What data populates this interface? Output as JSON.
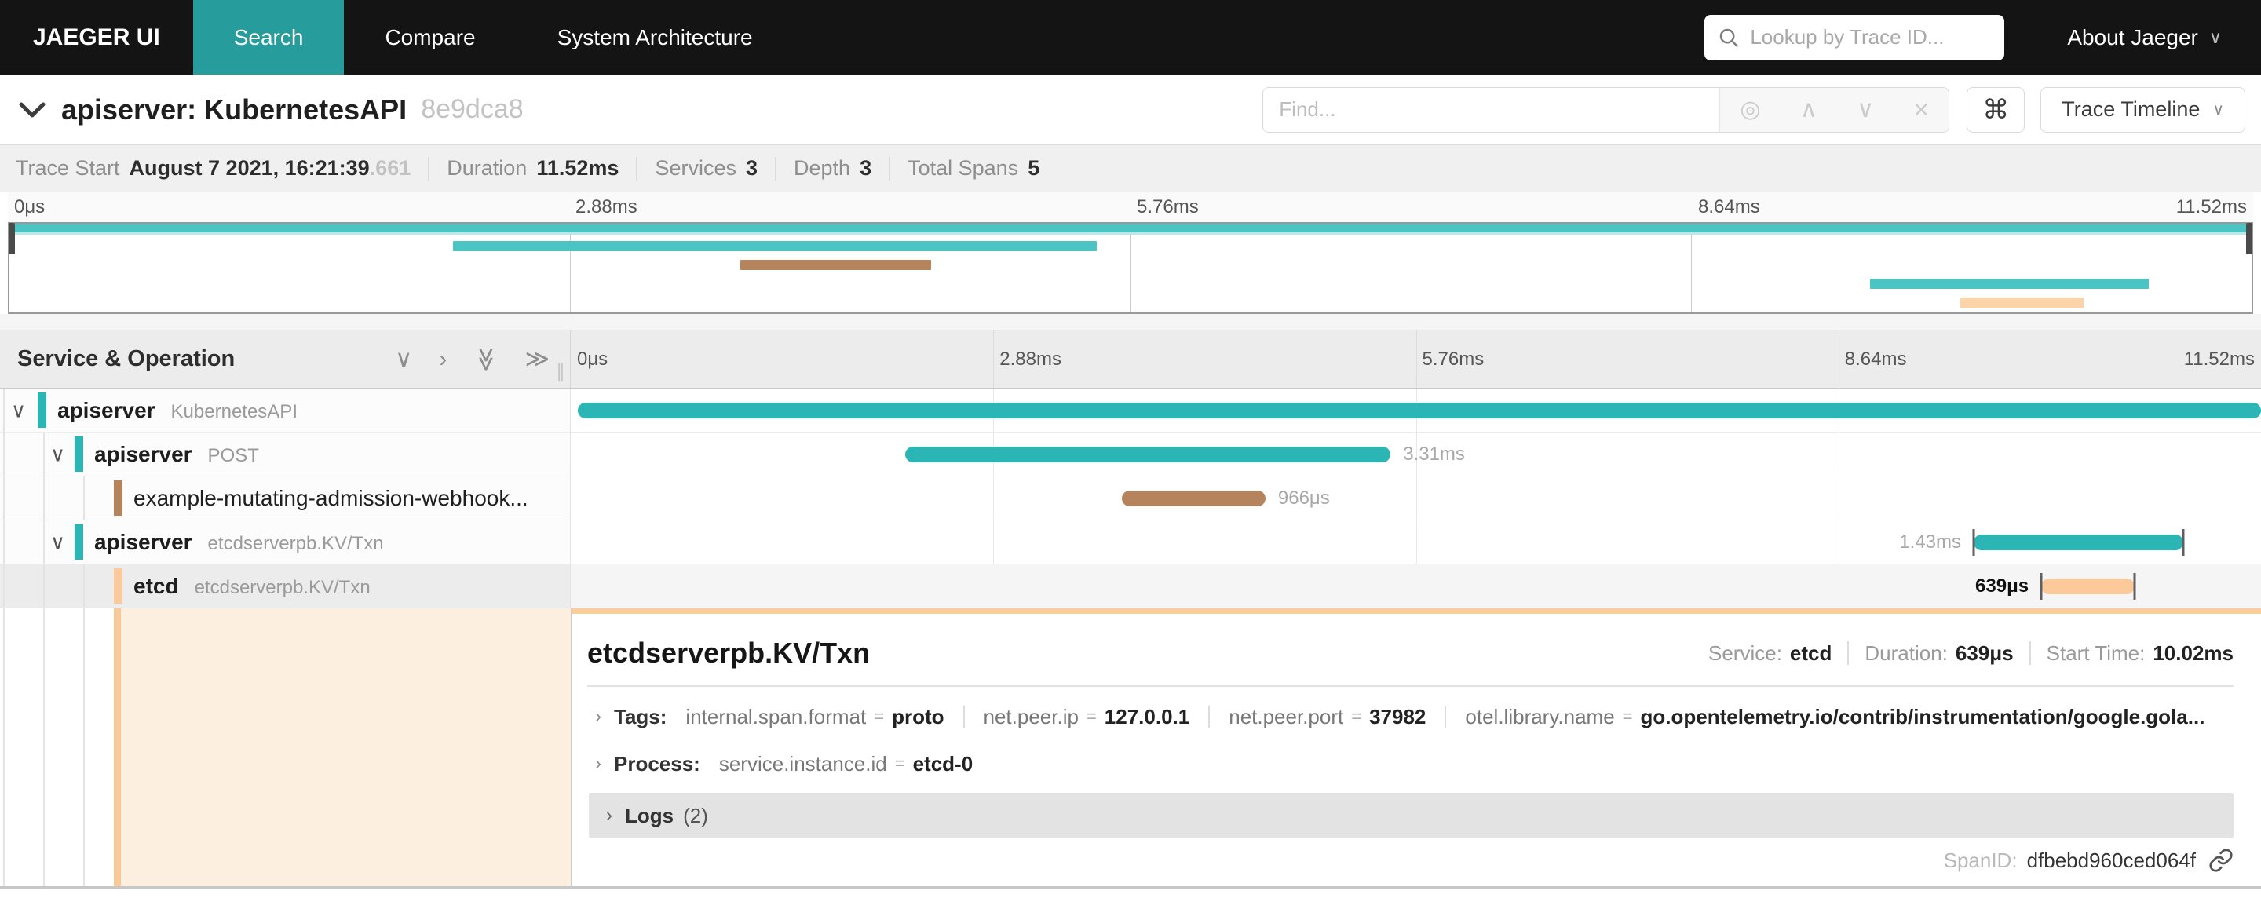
{
  "nav": {
    "brand": "JAEGER UI",
    "items": [
      {
        "label": "Search",
        "active": true
      },
      {
        "label": "Compare",
        "active": false
      },
      {
        "label": "System Architecture",
        "active": false
      }
    ],
    "trace_lookup_placeholder": "Lookup by Trace ID...",
    "about_label": "About Jaeger"
  },
  "trace_header": {
    "title": "apiserver: KubernetesAPI",
    "trace_id_short": "8e9dca8",
    "find_placeholder": "Find...",
    "view_selector_label": "Trace Timeline"
  },
  "summary": {
    "items": [
      {
        "label": "Trace Start",
        "value": "August 7 2021, 16:21:39",
        "suffix": ".661"
      },
      {
        "label": "Duration",
        "value": "11.52ms"
      },
      {
        "label": "Services",
        "value": "3"
      },
      {
        "label": "Depth",
        "value": "3"
      },
      {
        "label": "Total Spans",
        "value": "5"
      }
    ]
  },
  "timeline": {
    "column_header": "Service & Operation",
    "ticks": [
      "0μs",
      "2.88ms",
      "5.76ms",
      "8.64ms",
      "11.52ms"
    ]
  },
  "spans": [
    {
      "service": "apiserver",
      "operation": "KubernetesAPI",
      "depth": 0,
      "has_children": true,
      "color": "teal",
      "start_pct": 0.4,
      "width_pct": 99.6,
      "duration_label": "",
      "label_side": "none",
      "selected": false,
      "bold": true
    },
    {
      "service": "apiserver",
      "operation": "POST",
      "depth": 1,
      "has_children": true,
      "color": "teal",
      "start_pct": 19.8,
      "width_pct": 28.7,
      "duration_label": "3.31ms",
      "label_side": "right",
      "selected": false,
      "bold": true
    },
    {
      "service": "example-mutating-admission-webhook...",
      "operation": "",
      "depth": 2,
      "has_children": false,
      "color": "brown",
      "start_pct": 32.6,
      "width_pct": 8.5,
      "duration_label": "966μs",
      "label_side": "right",
      "selected": false,
      "bold": false
    },
    {
      "service": "apiserver",
      "operation": "etcdserverpb.KV/Txn",
      "depth": 1,
      "has_children": true,
      "color": "teal",
      "start_pct": 83.0,
      "width_pct": 12.4,
      "duration_label": "1.43ms",
      "label_side": "left",
      "selected": false,
      "bold": true,
      "end_ticks": true
    },
    {
      "service": "etcd",
      "operation": "etcdserverpb.KV/Txn",
      "depth": 2,
      "has_children": false,
      "color": "orange",
      "start_pct": 87.0,
      "width_pct": 5.5,
      "duration_label": "639μs",
      "label_side": "left",
      "selected": true,
      "bold": true,
      "end_ticks": true
    }
  ],
  "detail": {
    "title": "etcdserverpb.KV/Txn",
    "meta": [
      {
        "label": "Service:",
        "value": "etcd"
      },
      {
        "label": "Duration:",
        "value": "639μs"
      },
      {
        "label": "Start Time:",
        "value": "10.02ms"
      }
    ],
    "tags_label": "Tags:",
    "tags": [
      {
        "key": "internal.span.format",
        "value": "proto"
      },
      {
        "key": "net.peer.ip",
        "value": "127.0.0.1"
      },
      {
        "key": "net.peer.port",
        "value": "37982"
      },
      {
        "key": "otel.library.name",
        "value": "go.opentelemetry.io/contrib/instrumentation/google.gola..."
      }
    ],
    "process_label": "Process:",
    "process": [
      {
        "key": "service.instance.id",
        "value": "etcd-0"
      }
    ],
    "logs_label": "Logs",
    "logs_count": "(2)",
    "spanid_label": "SpanID:",
    "spanid_value": "dfbebd960ced064f"
  },
  "icons": {
    "chevron_down": "∨",
    "chevron_right": "›",
    "dbl_chevron_right": "≫",
    "command": "⌘",
    "target": "◎",
    "up": "∧",
    "down": "∨",
    "close": "×",
    "caret_down": "∨",
    "col_drag": "∥"
  },
  "colors": {
    "nav_bg": "#141414",
    "nav_active_tab": "#279c9c",
    "teal": "#2cb5b5",
    "teal_minimap": "#4cc4c4",
    "brown": "#b5845c",
    "brown_minimap": "#b5845c",
    "orange": "#fcca9a",
    "orange_minimap": "#fdd3a8",
    "selected_row_bg": "#ececec",
    "detail_accent": "#fac998",
    "detail_bg": "#fcefdf"
  }
}
